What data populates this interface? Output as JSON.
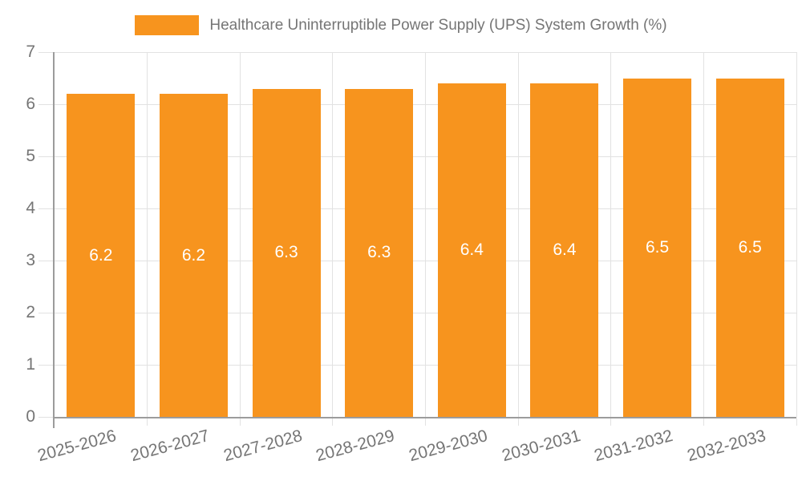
{
  "chart_data": {
    "type": "bar",
    "title": "",
    "legend_position": "top",
    "legend": [
      "Healthcare Uninterruptible Power Supply (UPS) System Growth (%)"
    ],
    "categories": [
      "2025-2026",
      "2026-2027",
      "2027-2028",
      "2028-2029",
      "2029-2030",
      "2030-2031",
      "2031-2032",
      "2032-2033"
    ],
    "series": [
      {
        "name": "Healthcare Uninterruptible Power Supply (UPS) System Growth (%)",
        "values": [
          6.2,
          6.2,
          6.3,
          6.3,
          6.4,
          6.4,
          6.5,
          6.5
        ]
      }
    ],
    "data_labels": [
      "6.2",
      "6.2",
      "6.3",
      "6.3",
      "6.4",
      "6.4",
      "6.5",
      "6.5"
    ],
    "xlabel": "",
    "ylabel": "",
    "ylim": [
      0,
      7
    ],
    "yticks": [
      0,
      1,
      2,
      3,
      4,
      5,
      6,
      7
    ],
    "grid": true,
    "colors": {
      "bar": "#F7941E",
      "grid": "#E2E2E2",
      "axis": "#9C9C9C",
      "tick_label": "#757575",
      "data_label": "#FFFFFF",
      "background": "#FFFFFF"
    }
  }
}
